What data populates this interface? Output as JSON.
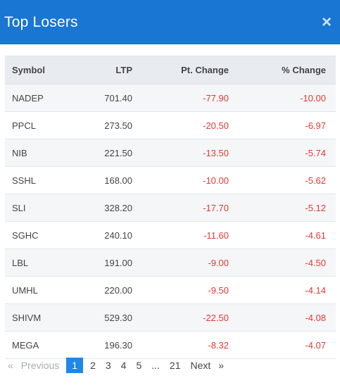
{
  "modal": {
    "title": "Top Losers",
    "close_label": "×"
  },
  "table": {
    "headers": [
      "Symbol",
      "LTP",
      "Pt. Change",
      "% Change"
    ],
    "rows": [
      {
        "symbol": "NADEP",
        "ltp": "701.40",
        "pt": "-77.90",
        "pct": "-10.00"
      },
      {
        "symbol": "PPCL",
        "ltp": "273.50",
        "pt": "-20.50",
        "pct": "-6.97"
      },
      {
        "symbol": "NIB",
        "ltp": "221.50",
        "pt": "-13.50",
        "pct": "-5.74"
      },
      {
        "symbol": "SSHL",
        "ltp": "168.00",
        "pt": "-10.00",
        "pct": "-5.62"
      },
      {
        "symbol": "SLI",
        "ltp": "328.20",
        "pt": "-17.70",
        "pct": "-5.12"
      },
      {
        "symbol": "SGHC",
        "ltp": "240.10",
        "pt": "-11.60",
        "pct": "-4.61"
      },
      {
        "symbol": "LBL",
        "ltp": "191.00",
        "pt": "-9.00",
        "pct": "-4.50"
      },
      {
        "symbol": "UMHL",
        "ltp": "220.00",
        "pt": "-9.50",
        "pct": "-4.14"
      },
      {
        "symbol": "SHIVM",
        "ltp": "529.30",
        "pt": "-22.50",
        "pct": "-4.08"
      },
      {
        "symbol": "MEGA",
        "ltp": "196.30",
        "pt": "-8.32",
        "pct": "-4.07"
      }
    ]
  },
  "pagination": {
    "prev_arrow": "«",
    "previous_label": "Previous",
    "pages": [
      "1",
      "2",
      "3",
      "4",
      "5",
      "...",
      "21"
    ],
    "active_page": "1",
    "next_label": "Next",
    "next_arrow": "»"
  },
  "colors": {
    "header_bg": "#1976d2",
    "negative": "#e53935",
    "active_page": "#1e88e5"
  }
}
